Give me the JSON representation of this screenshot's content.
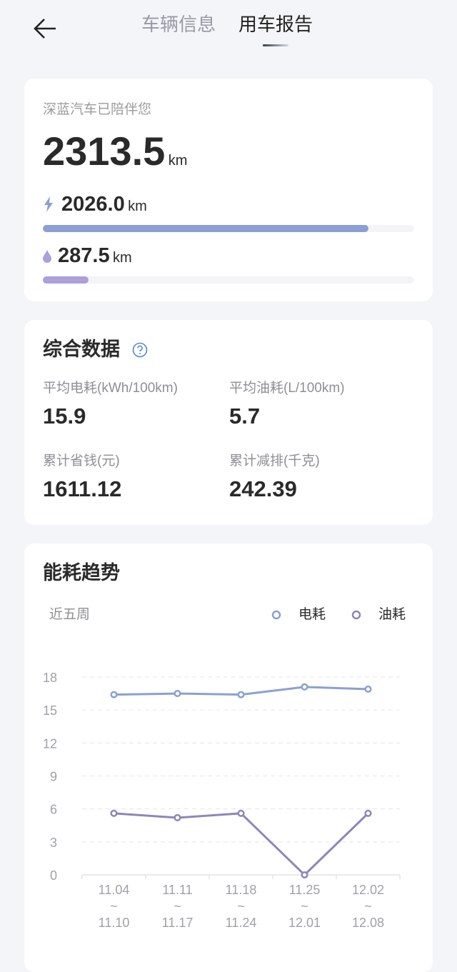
{
  "header": {
    "tabs": [
      {
        "label": "车辆信息",
        "active": false
      },
      {
        "label": "用车报告",
        "active": true
      }
    ]
  },
  "mileage": {
    "title": "深蓝汽车已陪伴您",
    "total": "2313.5",
    "unit": "km",
    "electric": {
      "icon": "lightning-icon",
      "value": "2026.0",
      "unit": "km",
      "fraction": 0.876,
      "color": "#8aa0d4"
    },
    "fuel": {
      "icon": "drop-icon",
      "value": "287.5",
      "unit": "km",
      "fraction": 0.124,
      "color": "#ac9fdc"
    }
  },
  "summary": {
    "title": "综合数据",
    "items": [
      {
        "label": "平均电耗(kWh/100km)",
        "value": "15.9"
      },
      {
        "label": "平均油耗(L/100km)",
        "value": "5.7"
      },
      {
        "label": "累计省钱(元)",
        "value": "1611.12"
      },
      {
        "label": "累计减排(千克)",
        "value": "242.39"
      }
    ]
  },
  "trend": {
    "title": "能耗趋势",
    "period": "近五周"
  },
  "chart_data": {
    "type": "line",
    "ylim": [
      0,
      18
    ],
    "yticks": [
      0,
      3,
      6,
      9,
      12,
      15,
      18
    ],
    "grid": true,
    "legend": "top-right",
    "categories": [
      [
        "11.04",
        "~",
        "11.10"
      ],
      [
        "11.11",
        "~",
        "11.17"
      ],
      [
        "11.18",
        "~",
        "11.24"
      ],
      [
        "11.25",
        "~",
        "12.01"
      ],
      [
        "12.02",
        "~",
        "12.08"
      ]
    ],
    "series": [
      {
        "name": "电耗",
        "color": "#8aa0d4",
        "values": [
          16.4,
          16.5,
          16.4,
          17.1,
          16.9
        ]
      },
      {
        "name": "油耗",
        "color": "#9086b8",
        "values": [
          5.6,
          5.2,
          5.6,
          0,
          5.6
        ]
      }
    ]
  }
}
